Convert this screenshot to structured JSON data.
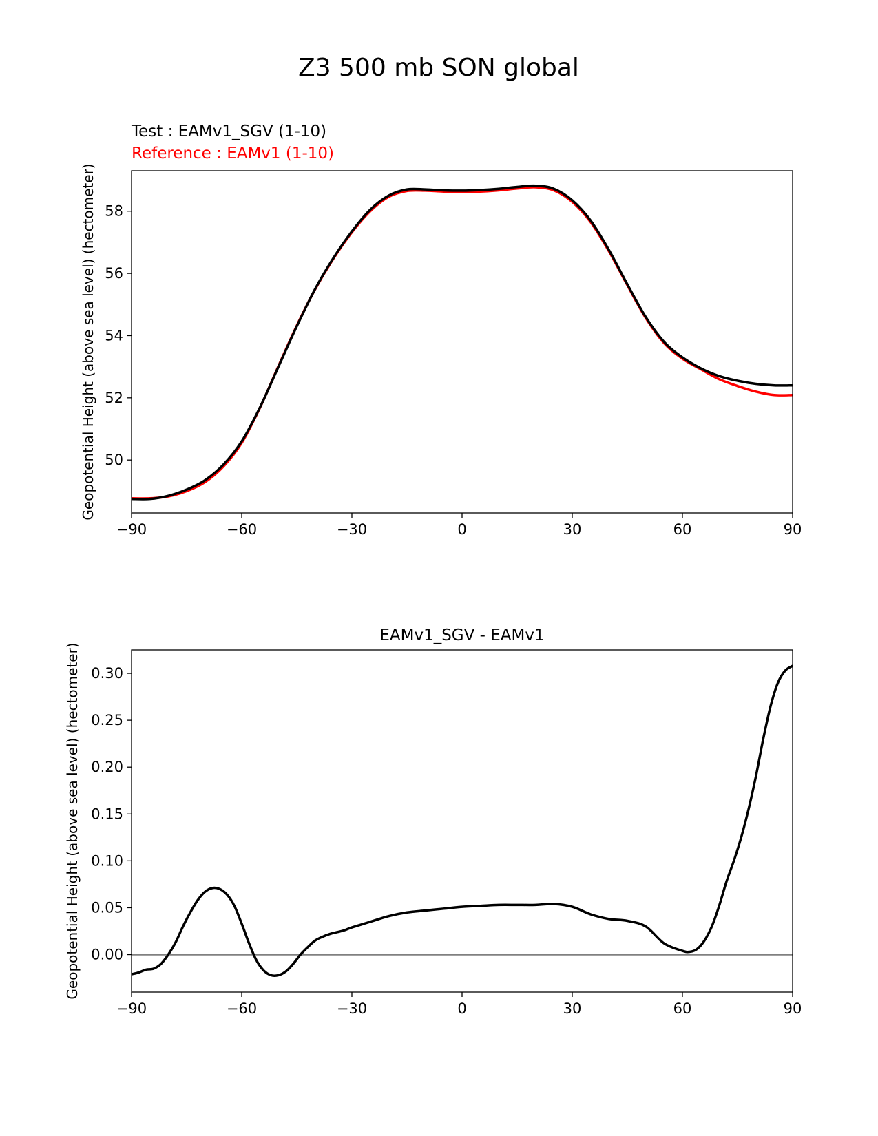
{
  "figure_title": "Z3 500 mb SON global",
  "chart_data": [
    {
      "type": "line",
      "title": "",
      "legend": [
        {
          "label": "Test : EAMv1_SGV (1-10)",
          "color": "#000000"
        },
        {
          "label": "Reference : EAMv1 (1-10)",
          "color": "#ff0000"
        }
      ],
      "xlabel": "",
      "ylabel": "Geopotential Height (above sea level) (hectometer)",
      "xlim": [
        -90,
        90
      ],
      "ylim": [
        48.3,
        59.3
      ],
      "xticks": [
        -90,
        -60,
        -30,
        0,
        30,
        60,
        90
      ],
      "xtick_labels": [
        "−90",
        "−60",
        "−30",
        "0",
        "30",
        "60",
        "90"
      ],
      "yticks": [
        50,
        52,
        54,
        56,
        58
      ],
      "ytick_labels": [
        "50",
        "52",
        "54",
        "56",
        "58"
      ],
      "series": [
        {
          "name": "Test : EAMv1_SGV (1-10)",
          "color": "#000000",
          "x": [
            -90,
            -85,
            -80,
            -75,
            -70,
            -65,
            -60,
            -55,
            -50,
            -45,
            -40,
            -35,
            -30,
            -25,
            -20,
            -15,
            -10,
            -5,
            0,
            5,
            10,
            15,
            20,
            25,
            30,
            35,
            40,
            45,
            50,
            55,
            60,
            65,
            70,
            75,
            80,
            85,
            90
          ],
          "y": [
            48.75,
            48.75,
            48.85,
            49.05,
            49.35,
            49.85,
            50.6,
            51.7,
            53.0,
            54.3,
            55.5,
            56.5,
            57.35,
            58.05,
            58.5,
            58.7,
            58.7,
            58.67,
            58.66,
            58.68,
            58.72,
            58.78,
            58.82,
            58.72,
            58.35,
            57.7,
            56.75,
            55.65,
            54.6,
            53.8,
            53.3,
            52.95,
            52.7,
            52.55,
            52.45,
            52.4,
            52.4
          ]
        },
        {
          "name": "Reference : EAMv1 (1-10)",
          "color": "#ff0000",
          "x": [
            -90,
            -85,
            -80,
            -75,
            -70,
            -65,
            -60,
            -55,
            -50,
            -45,
            -40,
            -35,
            -30,
            -25,
            -20,
            -15,
            -10,
            -5,
            0,
            5,
            10,
            15,
            20,
            25,
            30,
            35,
            40,
            45,
            50,
            55,
            60,
            65,
            70,
            75,
            80,
            85,
            90
          ],
          "y": [
            48.77,
            48.77,
            48.83,
            49.0,
            49.29,
            49.79,
            50.55,
            51.69,
            53.02,
            54.32,
            55.49,
            56.48,
            57.32,
            58.0,
            58.46,
            58.65,
            58.66,
            58.63,
            58.61,
            58.63,
            58.67,
            58.73,
            58.77,
            58.67,
            58.3,
            57.65,
            56.71,
            55.62,
            54.57,
            53.76,
            53.26,
            52.92,
            52.6,
            52.38,
            52.2,
            52.09,
            52.09
          ]
        }
      ]
    },
    {
      "type": "line",
      "title": "EAMv1_SGV - EAMv1",
      "xlabel": "",
      "ylabel": "Geopotential Height (above sea level) (hectometer)",
      "xlim": [
        -90,
        90
      ],
      "ylim": [
        -0.04,
        0.325
      ],
      "xticks": [
        -90,
        -60,
        -30,
        0,
        30,
        60,
        90
      ],
      "xtick_labels": [
        "−90",
        "−60",
        "−30",
        "0",
        "30",
        "60",
        "90"
      ],
      "yticks": [
        0.0,
        0.05,
        0.1,
        0.15,
        0.2,
        0.25,
        0.3
      ],
      "ytick_labels": [
        "0.00",
        "0.05",
        "0.10",
        "0.15",
        "0.20",
        "0.25",
        "0.30"
      ],
      "zero_line": {
        "y": 0,
        "color": "#808080"
      },
      "series": [
        {
          "name": "EAMv1_SGV - EAMv1",
          "color": "#000000",
          "x": [
            -90,
            -88,
            -86,
            -84,
            -82,
            -80,
            -78,
            -76,
            -74,
            -72,
            -70,
            -68,
            -66,
            -64,
            -62,
            -60,
            -58,
            -56,
            -54,
            -52,
            -50,
            -48,
            -46,
            -44,
            -42,
            -40,
            -38,
            -36,
            -34,
            -32,
            -30,
            -25,
            -20,
            -15,
            -10,
            -5,
            0,
            5,
            10,
            15,
            20,
            25,
            30,
            35,
            40,
            45,
            50,
            55,
            60,
            62,
            64,
            66,
            68,
            70,
            72,
            74,
            76,
            78,
            80,
            82,
            84,
            86,
            88,
            90
          ],
          "y": [
            -0.021,
            -0.019,
            -0.016,
            -0.015,
            -0.01,
            0.0,
            0.013,
            0.03,
            0.045,
            0.058,
            0.067,
            0.071,
            0.07,
            0.064,
            0.052,
            0.033,
            0.012,
            -0.006,
            -0.017,
            -0.022,
            -0.022,
            -0.018,
            -0.01,
            0.0,
            0.008,
            0.015,
            0.019,
            0.022,
            0.024,
            0.026,
            0.029,
            0.035,
            0.041,
            0.045,
            0.047,
            0.049,
            0.051,
            0.052,
            0.053,
            0.053,
            0.053,
            0.054,
            0.051,
            0.043,
            0.038,
            0.036,
            0.03,
            0.012,
            0.004,
            0.003,
            0.006,
            0.015,
            0.03,
            0.052,
            0.078,
            0.1,
            0.125,
            0.155,
            0.19,
            0.23,
            0.265,
            0.29,
            0.303,
            0.308
          ]
        }
      ]
    }
  ]
}
